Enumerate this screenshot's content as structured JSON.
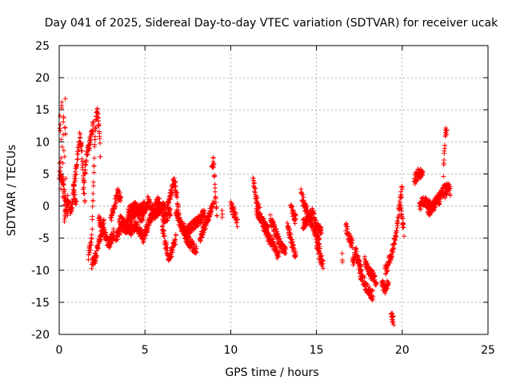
{
  "chart_data": {
    "type": "scatter",
    "title": "Day 041 of 2025, Sidereal Day-to-day VTEC variation (SDTVAR) for receiver ucak",
    "xlabel": "GPS time / hours",
    "ylabel": "SDTVAR / TECUs",
    "xlim": [
      0,
      25
    ],
    "ylim": [
      -20,
      25
    ],
    "xticks": [
      0,
      5,
      10,
      15,
      20,
      25
    ],
    "yticks": [
      -20,
      -15,
      -10,
      -5,
      0,
      5,
      10,
      15,
      20,
      25
    ],
    "grid": true,
    "marker": "+",
    "color": "#ff0000",
    "segments": [
      [
        0.0,
        0.4,
        [
          [
            0.0,
            2
          ],
          [
            0.05,
            16
          ],
          [
            0.1,
            3
          ],
          [
            0.15,
            18
          ],
          [
            0.2,
            1
          ],
          [
            0.25,
            17
          ],
          [
            0.3,
            -1
          ],
          [
            0.35,
            19
          ],
          [
            0.4,
            0
          ]
        ]
      ],
      [
        0.0,
        0.5,
        [
          [
            0.0,
            5
          ],
          [
            0.2,
            4
          ],
          [
            0.35,
            1
          ],
          [
            0.5,
            -1
          ]
        ]
      ],
      [
        0.3,
        1.0,
        [
          [
            0.3,
            -2
          ],
          [
            0.5,
            1
          ],
          [
            0.7,
            -1
          ],
          [
            0.85,
            2
          ],
          [
            1.0,
            0
          ]
        ]
      ],
      [
        0.8,
        1.5,
        [
          [
            0.8,
            2
          ],
          [
            1.0,
            6
          ],
          [
            1.2,
            11
          ],
          [
            1.3,
            9
          ],
          [
            1.5,
            1
          ]
        ]
      ],
      [
        1.4,
        2.0,
        [
          [
            1.4,
            2
          ],
          [
            1.6,
            8
          ],
          [
            1.8,
            10
          ],
          [
            2.0,
            13
          ]
        ]
      ],
      [
        1.7,
        2.4,
        [
          [
            1.7,
            -8
          ],
          [
            1.9,
            -5
          ],
          [
            2.0,
            4
          ],
          [
            2.1,
            12
          ],
          [
            2.2,
            15
          ],
          [
            2.3,
            13
          ],
          [
            2.4,
            8
          ]
        ]
      ],
      [
        1.9,
        2.6,
        [
          [
            1.9,
            -9
          ],
          [
            2.1,
            -8
          ],
          [
            2.3,
            -6
          ],
          [
            2.5,
            -4
          ],
          [
            2.6,
            -2
          ]
        ]
      ],
      [
        2.3,
        3.2,
        [
          [
            2.3,
            -2
          ],
          [
            2.6,
            -4
          ],
          [
            2.9,
            -6
          ],
          [
            3.2,
            -4
          ]
        ]
      ],
      [
        3.0,
        3.6,
        [
          [
            3.0,
            -2
          ],
          [
            3.2,
            0
          ],
          [
            3.4,
            2
          ],
          [
            3.6,
            1
          ]
        ]
      ],
      [
        3.3,
        4.5,
        [
          [
            3.3,
            -5
          ],
          [
            3.7,
            -3
          ],
          [
            4.1,
            -4
          ],
          [
            4.5,
            -3
          ]
        ]
      ],
      [
        3.5,
        5.0,
        [
          [
            3.5,
            -2
          ],
          [
            3.9,
            -3
          ],
          [
            4.4,
            -1
          ],
          [
            5.0,
            0
          ]
        ]
      ],
      [
        4.0,
        5.5,
        [
          [
            4.0,
            -1
          ],
          [
            4.4,
            0
          ],
          [
            4.8,
            -2
          ],
          [
            5.2,
            1
          ],
          [
            5.5,
            -1
          ]
        ]
      ],
      [
        4.5,
        6.2,
        [
          [
            4.5,
            -3
          ],
          [
            4.9,
            -5
          ],
          [
            5.3,
            -2
          ],
          [
            5.7,
            -1
          ],
          [
            6.2,
            0
          ]
        ]
      ],
      [
        5.5,
        6.5,
        [
          [
            5.5,
            -1
          ],
          [
            5.8,
            1
          ],
          [
            6.1,
            -2
          ],
          [
            6.5,
            -1
          ]
        ]
      ],
      [
        6.0,
        6.8,
        [
          [
            6.0,
            -3
          ],
          [
            6.2,
            -6
          ],
          [
            6.4,
            -8
          ],
          [
            6.6,
            -7
          ],
          [
            6.8,
            -5
          ]
        ]
      ],
      [
        6.3,
        7.0,
        [
          [
            6.3,
            0
          ],
          [
            6.5,
            2
          ],
          [
            6.7,
            4
          ],
          [
            6.9,
            1
          ],
          [
            7.0,
            -2
          ]
        ]
      ],
      [
        6.8,
        8.0,
        [
          [
            6.8,
            -1
          ],
          [
            7.1,
            -3
          ],
          [
            7.4,
            -5
          ],
          [
            7.7,
            -6
          ],
          [
            8.0,
            -7
          ]
        ]
      ],
      [
        7.0,
        8.5,
        [
          [
            7.0,
            -2
          ],
          [
            7.4,
            -4
          ],
          [
            7.8,
            -3
          ],
          [
            8.2,
            -2
          ],
          [
            8.5,
            -1
          ]
        ]
      ],
      [
        8.2,
        9.0,
        [
          [
            8.2,
            -5
          ],
          [
            8.5,
            -3
          ],
          [
            8.8,
            -1
          ],
          [
            9.0,
            0
          ]
        ]
      ],
      [
        8.9,
        9.2,
        [
          [
            8.9,
            6
          ],
          [
            9.0,
            7
          ],
          [
            9.1,
            2
          ],
          [
            9.2,
            -1
          ]
        ]
      ],
      [
        9.5,
        9.5,
        [
          [
            9.5,
            -1
          ]
        ]
      ],
      [
        10.0,
        10.4,
        [
          [
            10.0,
            0
          ],
          [
            10.2,
            -1
          ],
          [
            10.4,
            -3
          ]
        ]
      ],
      [
        11.3,
        11.7,
        [
          [
            11.3,
            4
          ],
          [
            11.5,
            1
          ],
          [
            11.7,
            -1
          ]
        ]
      ],
      [
        11.5,
        12.2,
        [
          [
            11.5,
            -1
          ],
          [
            11.8,
            -2
          ],
          [
            12.0,
            -3
          ],
          [
            12.2,
            -4
          ]
        ]
      ],
      [
        11.9,
        12.8,
        [
          [
            11.9,
            -3
          ],
          [
            12.2,
            -5
          ],
          [
            12.5,
            -6
          ],
          [
            12.8,
            -8
          ]
        ]
      ],
      [
        12.3,
        13.2,
        [
          [
            12.3,
            -2
          ],
          [
            12.6,
            -4
          ],
          [
            12.9,
            -6
          ],
          [
            13.2,
            -7
          ]
        ]
      ],
      [
        13.3,
        13.8,
        [
          [
            13.3,
            -3
          ],
          [
            13.5,
            -5
          ],
          [
            13.8,
            -8
          ]
        ]
      ],
      [
        13.5,
        13.8,
        [
          [
            13.5,
            0
          ],
          [
            13.7,
            -2
          ]
        ]
      ],
      [
        14.1,
        14.5,
        [
          [
            14.1,
            2
          ],
          [
            14.3,
            0
          ],
          [
            14.5,
            -1
          ]
        ]
      ],
      [
        14.2,
        15.3,
        [
          [
            14.2,
            -3
          ],
          [
            14.5,
            -2
          ],
          [
            14.8,
            -1
          ],
          [
            15.0,
            -3
          ],
          [
            15.3,
            -4
          ]
        ]
      ],
      [
        14.6,
        15.2,
        [
          [
            14.6,
            -2
          ],
          [
            14.9,
            -4
          ],
          [
            15.2,
            -6
          ]
        ]
      ],
      [
        15.0,
        15.4,
        [
          [
            15.0,
            -6
          ],
          [
            15.2,
            -8
          ],
          [
            15.4,
            -9
          ]
        ]
      ],
      [
        16.5,
        16.5,
        [
          [
            16.5,
            -8
          ]
        ]
      ],
      [
        16.7,
        17.1,
        [
          [
            16.7,
            -3
          ],
          [
            16.9,
            -5
          ],
          [
            17.1,
            -6
          ]
        ]
      ],
      [
        17.1,
        17.6,
        [
          [
            17.1,
            -9
          ],
          [
            17.3,
            -7
          ],
          [
            17.6,
            -10
          ]
        ]
      ],
      [
        17.4,
        18.3,
        [
          [
            17.4,
            -8
          ],
          [
            17.6,
            -11
          ],
          [
            17.8,
            -12
          ],
          [
            18.0,
            -13
          ],
          [
            18.3,
            -14
          ]
        ]
      ],
      [
        17.8,
        18.5,
        [
          [
            17.8,
            -8
          ],
          [
            18.0,
            -10
          ],
          [
            18.3,
            -11
          ],
          [
            18.5,
            -12
          ]
        ]
      ],
      [
        18.8,
        19.2,
        [
          [
            18.8,
            -12
          ],
          [
            19.0,
            -13
          ],
          [
            19.2,
            -12
          ]
        ]
      ],
      [
        19.0,
        19.6,
        [
          [
            19.0,
            -10
          ],
          [
            19.2,
            -9
          ],
          [
            19.4,
            -7
          ],
          [
            19.6,
            -5
          ]
        ]
      ],
      [
        19.35,
        19.5,
        [
          [
            19.35,
            -17
          ],
          [
            19.5,
            -18
          ]
        ]
      ],
      [
        19.6,
        20.0,
        [
          [
            19.6,
            -5
          ],
          [
            19.8,
            -1
          ],
          [
            20.0,
            3
          ]
        ]
      ],
      [
        19.9,
        20.1,
        [
          [
            19.9,
            0
          ],
          [
            20.0,
            -2
          ],
          [
            20.1,
            -4
          ]
        ]
      ],
      [
        20.7,
        21.2,
        [
          [
            20.7,
            4
          ],
          [
            20.9,
            5
          ],
          [
            21.2,
            5
          ]
        ]
      ],
      [
        21.0,
        21.9,
        [
          [
            21.0,
            0
          ],
          [
            21.3,
            1
          ],
          [
            21.6,
            0
          ],
          [
            21.9,
            0
          ]
        ]
      ],
      [
        21.5,
        22.2,
        [
          [
            21.5,
            -1
          ],
          [
            21.8,
            0
          ],
          [
            22.0,
            1
          ],
          [
            22.2,
            1
          ]
        ]
      ],
      [
        22.1,
        22.6,
        [
          [
            22.1,
            1
          ],
          [
            22.3,
            2
          ],
          [
            22.6,
            3
          ]
        ]
      ],
      [
        22.4,
        22.6,
        [
          [
            22.4,
            5
          ],
          [
            22.5,
            11
          ],
          [
            22.6,
            12
          ]
        ]
      ],
      [
        22.5,
        22.8,
        [
          [
            22.5,
            2
          ],
          [
            22.7,
            3
          ],
          [
            22.8,
            2
          ]
        ]
      ]
    ]
  }
}
